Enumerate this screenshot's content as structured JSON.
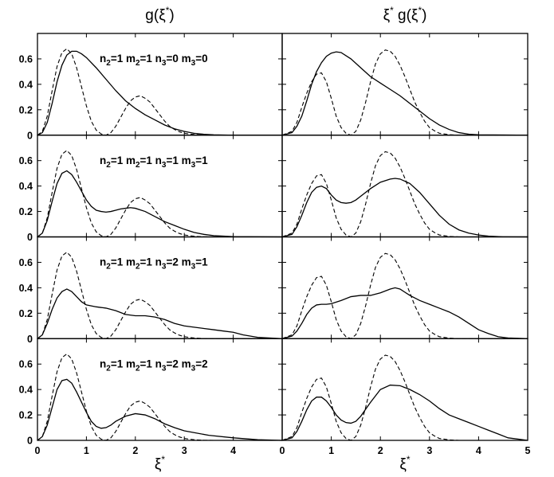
{
  "chart_data": {
    "type": "line",
    "column_titles": [
      {
        "pre": "g(ξ",
        "sup": "*",
        "post": ")"
      },
      {
        "pre": "ξ",
        "sup": "*",
        "mid": " g(ξ",
        "sup2": "*",
        "post": ")"
      }
    ],
    "xlabel": {
      "base": "ξ",
      "sup": "*"
    },
    "xlim": [
      0,
      5
    ],
    "ylim": [
      0,
      0.8
    ],
    "xticks": [
      0,
      1,
      2,
      3,
      4,
      5
    ],
    "yticks": [
      0,
      0.2,
      0.4,
      0.6
    ],
    "ytick_labels": [
      "0",
      "0.2",
      "0.4",
      "0.6"
    ],
    "grid": false,
    "reference_curve": {
      "style": "dashed",
      "left": {
        "x": [
          0,
          0.1,
          0.2,
          0.3,
          0.4,
          0.5,
          0.6,
          0.7,
          0.8,
          0.9,
          1.0,
          1.1,
          1.2,
          1.3,
          1.4,
          1.5,
          1.6,
          1.7,
          1.8,
          1.9,
          2.0,
          2.1,
          2.2,
          2.3,
          2.4,
          2.5,
          2.6,
          2.7,
          2.8,
          2.9,
          3.0,
          3.2,
          3.4,
          3.6,
          4.0,
          5.0
        ],
        "y": [
          0,
          0.03,
          0.15,
          0.35,
          0.54,
          0.65,
          0.68,
          0.64,
          0.53,
          0.38,
          0.23,
          0.11,
          0.04,
          0.01,
          0.0,
          0.02,
          0.07,
          0.14,
          0.21,
          0.27,
          0.3,
          0.31,
          0.29,
          0.26,
          0.21,
          0.16,
          0.11,
          0.07,
          0.045,
          0.027,
          0.015,
          0.005,
          0.001,
          0,
          0,
          0
        ]
      },
      "right": {
        "x": [
          0,
          0.2,
          0.3,
          0.4,
          0.5,
          0.6,
          0.7,
          0.8,
          0.9,
          1.0,
          1.1,
          1.2,
          1.3,
          1.4,
          1.5,
          1.6,
          1.7,
          1.8,
          1.9,
          2.0,
          2.1,
          2.2,
          2.3,
          2.4,
          2.5,
          2.6,
          2.7,
          2.8,
          2.9,
          3.0,
          3.1,
          3.2,
          3.4,
          3.6,
          4.0,
          5.0
        ],
        "y": [
          0,
          0.03,
          0.1,
          0.22,
          0.33,
          0.42,
          0.48,
          0.49,
          0.42,
          0.29,
          0.15,
          0.06,
          0.015,
          0.0,
          0.03,
          0.12,
          0.26,
          0.42,
          0.56,
          0.64,
          0.67,
          0.66,
          0.62,
          0.55,
          0.46,
          0.36,
          0.26,
          0.18,
          0.11,
          0.06,
          0.035,
          0.015,
          0.004,
          0,
          0,
          0
        ]
      }
    },
    "panels": [
      {
        "annotation": [
          "n",
          "2",
          "=1 m",
          "2",
          "=1 n",
          "3",
          "=0 m",
          "3",
          "=0"
        ],
        "left": {
          "x": [
            0,
            0.1,
            0.2,
            0.3,
            0.4,
            0.5,
            0.6,
            0.7,
            0.8,
            0.9,
            1.0,
            1.2,
            1.4,
            1.6,
            1.8,
            2.0,
            2.2,
            2.4,
            2.6,
            2.8,
            3.0,
            3.2,
            3.4,
            3.6,
            4.0,
            5.0
          ],
          "y": [
            0,
            0.02,
            0.1,
            0.25,
            0.42,
            0.55,
            0.63,
            0.66,
            0.66,
            0.64,
            0.61,
            0.53,
            0.44,
            0.35,
            0.27,
            0.21,
            0.16,
            0.12,
            0.08,
            0.05,
            0.03,
            0.015,
            0.007,
            0.003,
            0,
            0
          ]
        },
        "right": {
          "x": [
            0,
            0.2,
            0.3,
            0.4,
            0.5,
            0.6,
            0.7,
            0.8,
            0.9,
            1.0,
            1.1,
            1.2,
            1.4,
            1.6,
            1.8,
            2.0,
            2.2,
            2.4,
            2.6,
            2.8,
            3.0,
            3.2,
            3.4,
            3.6,
            3.8,
            4.0,
            5.0
          ],
          "y": [
            0,
            0.02,
            0.07,
            0.15,
            0.27,
            0.4,
            0.5,
            0.57,
            0.62,
            0.645,
            0.655,
            0.65,
            0.6,
            0.53,
            0.46,
            0.41,
            0.36,
            0.31,
            0.25,
            0.19,
            0.13,
            0.08,
            0.045,
            0.02,
            0.008,
            0.003,
            0
          ]
        }
      },
      {
        "annotation": [
          "n",
          "2",
          "=1 m",
          "2",
          "=1 n",
          "3",
          "=1 m",
          "3",
          "=1"
        ],
        "left": {
          "x": [
            0,
            0.1,
            0.2,
            0.3,
            0.4,
            0.5,
            0.6,
            0.7,
            0.8,
            0.9,
            1.0,
            1.1,
            1.2,
            1.3,
            1.4,
            1.5,
            1.6,
            1.7,
            1.8,
            1.9,
            2.0,
            2.2,
            2.4,
            2.6,
            2.8,
            3.0,
            3.2,
            3.4,
            3.6,
            4.0,
            5.0
          ],
          "y": [
            0,
            0.03,
            0.13,
            0.28,
            0.42,
            0.5,
            0.52,
            0.49,
            0.43,
            0.36,
            0.29,
            0.24,
            0.21,
            0.2,
            0.195,
            0.2,
            0.21,
            0.22,
            0.225,
            0.23,
            0.225,
            0.2,
            0.16,
            0.12,
            0.09,
            0.06,
            0.035,
            0.02,
            0.01,
            0.002,
            0
          ]
        },
        "right": {
          "x": [
            0,
            0.2,
            0.3,
            0.4,
            0.5,
            0.6,
            0.7,
            0.8,
            0.9,
            1.0,
            1.1,
            1.2,
            1.3,
            1.4,
            1.5,
            1.6,
            1.8,
            2.0,
            2.2,
            2.3,
            2.4,
            2.6,
            2.8,
            3.0,
            3.2,
            3.4,
            3.6,
            3.8,
            4.0,
            4.2,
            4.5,
            5.0
          ],
          "y": [
            0,
            0.02,
            0.08,
            0.17,
            0.27,
            0.35,
            0.39,
            0.4,
            0.38,
            0.33,
            0.29,
            0.27,
            0.265,
            0.27,
            0.29,
            0.32,
            0.38,
            0.43,
            0.455,
            0.46,
            0.455,
            0.42,
            0.35,
            0.26,
            0.17,
            0.1,
            0.055,
            0.03,
            0.015,
            0.006,
            0.001,
            0
          ]
        }
      },
      {
        "annotation": [
          "n",
          "2",
          "=1 m",
          "2",
          "=1 n",
          "3",
          "=2 m",
          "3",
          "=1"
        ],
        "left": {
          "x": [
            0,
            0.1,
            0.2,
            0.3,
            0.4,
            0.5,
            0.6,
            0.7,
            0.8,
            0.9,
            1.0,
            1.2,
            1.4,
            1.6,
            1.8,
            2.0,
            2.2,
            2.4,
            2.6,
            2.8,
            3.0,
            3.2,
            3.4,
            3.6,
            3.8,
            4.0,
            4.2,
            4.5,
            5.0
          ],
          "y": [
            0,
            0.03,
            0.12,
            0.23,
            0.32,
            0.37,
            0.39,
            0.37,
            0.33,
            0.29,
            0.265,
            0.25,
            0.24,
            0.22,
            0.19,
            0.18,
            0.18,
            0.17,
            0.15,
            0.12,
            0.1,
            0.09,
            0.08,
            0.07,
            0.06,
            0.05,
            0.03,
            0.01,
            0
          ]
        },
        "right": {
          "x": [
            0,
            0.2,
            0.3,
            0.4,
            0.5,
            0.6,
            0.7,
            0.8,
            0.9,
            1.0,
            1.2,
            1.4,
            1.6,
            1.8,
            2.0,
            2.2,
            2.3,
            2.4,
            2.6,
            2.8,
            3.0,
            3.2,
            3.4,
            3.6,
            3.8,
            4.0,
            4.2,
            4.4,
            4.6,
            5.0
          ],
          "y": [
            0,
            0.02,
            0.06,
            0.12,
            0.19,
            0.24,
            0.265,
            0.27,
            0.27,
            0.275,
            0.3,
            0.33,
            0.34,
            0.34,
            0.36,
            0.39,
            0.4,
            0.39,
            0.34,
            0.3,
            0.27,
            0.24,
            0.21,
            0.17,
            0.12,
            0.07,
            0.04,
            0.015,
            0.005,
            0
          ]
        }
      },
      {
        "annotation": [
          "n",
          "2",
          "=1 m",
          "2",
          "=1 n",
          "3",
          "=2 m",
          "3",
          "=2"
        ],
        "left": {
          "x": [
            0,
            0.1,
            0.2,
            0.3,
            0.4,
            0.5,
            0.6,
            0.7,
            0.8,
            0.9,
            1.0,
            1.1,
            1.2,
            1.3,
            1.4,
            1.5,
            1.6,
            1.8,
            2.0,
            2.2,
            2.4,
            2.6,
            2.8,
            3.0,
            3.5,
            4.0,
            4.5,
            5.0
          ],
          "y": [
            0,
            0.03,
            0.12,
            0.26,
            0.4,
            0.47,
            0.48,
            0.45,
            0.38,
            0.3,
            0.22,
            0.15,
            0.11,
            0.095,
            0.1,
            0.12,
            0.15,
            0.19,
            0.21,
            0.2,
            0.17,
            0.13,
            0.1,
            0.075,
            0.04,
            0.02,
            0.005,
            0
          ]
        },
        "right": {
          "x": [
            0,
            0.2,
            0.3,
            0.4,
            0.5,
            0.6,
            0.7,
            0.8,
            0.9,
            1.0,
            1.1,
            1.2,
            1.3,
            1.4,
            1.5,
            1.6,
            1.8,
            2.0,
            2.2,
            2.4,
            2.6,
            2.8,
            3.0,
            3.2,
            3.4,
            3.6,
            3.8,
            4.0,
            4.2,
            4.4,
            4.6,
            5.0
          ],
          "y": [
            0,
            0.02,
            0.07,
            0.15,
            0.24,
            0.31,
            0.34,
            0.34,
            0.31,
            0.26,
            0.2,
            0.16,
            0.14,
            0.135,
            0.15,
            0.19,
            0.3,
            0.4,
            0.435,
            0.43,
            0.4,
            0.36,
            0.31,
            0.25,
            0.2,
            0.17,
            0.14,
            0.11,
            0.08,
            0.05,
            0.02,
            0
          ]
        }
      }
    ]
  }
}
